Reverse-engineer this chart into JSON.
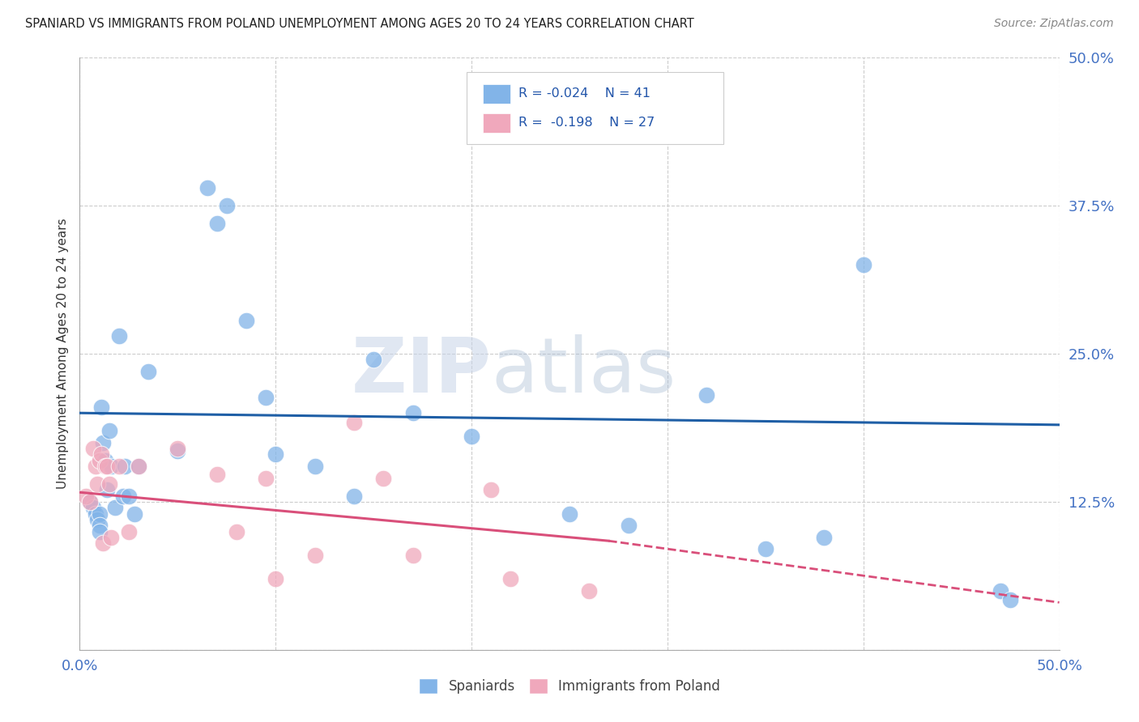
{
  "title": "SPANIARD VS IMMIGRANTS FROM POLAND UNEMPLOYMENT AMONG AGES 20 TO 24 YEARS CORRELATION CHART",
  "source": "Source: ZipAtlas.com",
  "ylabel": "Unemployment Among Ages 20 to 24 years",
  "xlim": [
    0,
    0.5
  ],
  "ylim": [
    0,
    0.5
  ],
  "yticks": [
    0.0,
    0.125,
    0.25,
    0.375,
    0.5
  ],
  "ytick_labels": [
    "",
    "12.5%",
    "25.0%",
    "37.5%",
    "50.0%"
  ],
  "xtick_positions": [
    0.0,
    0.1,
    0.2,
    0.3,
    0.4,
    0.5
  ],
  "background_color": "#ffffff",
  "grid_color": "#cccccc",
  "watermark_zip": "ZIP",
  "watermark_atlas": "atlas",
  "legend_R_blue": "R = -0.024",
  "legend_N_blue": "N = 41",
  "legend_R_pink": "R =  -0.198",
  "legend_N_pink": "N = 27",
  "spaniards_color": "#82b4e8",
  "poland_color": "#f0a8bc",
  "blue_line_color": "#1f5fa6",
  "pink_line_color": "#d94f7a",
  "spaniards_x": [
    0.005,
    0.007,
    0.008,
    0.009,
    0.01,
    0.01,
    0.01,
    0.011,
    0.012,
    0.013,
    0.014,
    0.015,
    0.016,
    0.018,
    0.02,
    0.022,
    0.023,
    0.025,
    0.028,
    0.03,
    0.035,
    0.05,
    0.065,
    0.07,
    0.075,
    0.085,
    0.095,
    0.1,
    0.12,
    0.14,
    0.15,
    0.17,
    0.2,
    0.25,
    0.28,
    0.32,
    0.35,
    0.38,
    0.4,
    0.47,
    0.475
  ],
  "spaniards_y": [
    0.125,
    0.12,
    0.115,
    0.11,
    0.115,
    0.105,
    0.1,
    0.205,
    0.175,
    0.16,
    0.135,
    0.185,
    0.155,
    0.12,
    0.265,
    0.13,
    0.155,
    0.13,
    0.115,
    0.155,
    0.235,
    0.168,
    0.39,
    0.36,
    0.375,
    0.278,
    0.213,
    0.165,
    0.155,
    0.13,
    0.245,
    0.2,
    0.18,
    0.115,
    0.105,
    0.215,
    0.085,
    0.095,
    0.325,
    0.05,
    0.042
  ],
  "poland_x": [
    0.003,
    0.005,
    0.007,
    0.008,
    0.009,
    0.01,
    0.011,
    0.012,
    0.013,
    0.014,
    0.015,
    0.016,
    0.02,
    0.025,
    0.03,
    0.05,
    0.07,
    0.08,
    0.095,
    0.1,
    0.12,
    0.14,
    0.155,
    0.17,
    0.21,
    0.22,
    0.26
  ],
  "poland_y": [
    0.13,
    0.125,
    0.17,
    0.155,
    0.14,
    0.16,
    0.165,
    0.09,
    0.155,
    0.155,
    0.14,
    0.095,
    0.155,
    0.1,
    0.155,
    0.17,
    0.148,
    0.1,
    0.145,
    0.06,
    0.08,
    0.192,
    0.145,
    0.08,
    0.135,
    0.06,
    0.05
  ],
  "blue_line_y0": 0.2,
  "blue_line_y1": 0.19,
  "pink_line_x0": 0.0,
  "pink_line_y0": 0.133,
  "pink_line_x_solid_end": 0.27,
  "pink_line_y_solid_end": 0.092,
  "pink_line_x1": 0.5,
  "pink_line_y1": 0.04
}
